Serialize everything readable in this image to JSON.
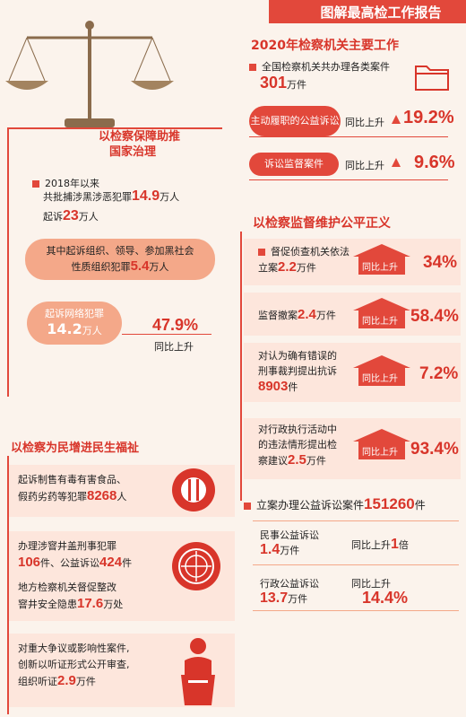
{
  "header": {
    "title": "图解最高检工作报告"
  },
  "section1": {
    "title": "2020年检察机关主要工作",
    "line1": "全国检察机关共办理各类案件",
    "cases_num": "301",
    "cases_unit": "万件",
    "pill1": "主动履职的公益诉讼",
    "pill1_rate_label": "同比上升",
    "pill1_rate": "19.2%",
    "pill2": "诉讼监督案件",
    "pill2_rate_label": "同比上升",
    "pill2_rate": "9.6%"
  },
  "left1": {
    "title1": "以检察保障助推",
    "title2": "国家治理",
    "since": "2018年以来",
    "arrest_pre": "共批捕涉黑涉恶犯罪",
    "arrest_num": "14.9",
    "arrest_unit": "万人",
    "prosecute_pre": "起诉",
    "prosecute_num": "23",
    "prosecute_unit": "万人",
    "org_line1": "其中起诉组织、领导、参加黑社会",
    "org_line2_pre": "性质组织犯罪",
    "org_num": "5.4",
    "org_unit": "万人",
    "net_label": "起诉网络犯罪",
    "net_num": "14.2",
    "net_unit": "万人",
    "net_rate": "47.9%",
    "net_rate_label": "同比上升"
  },
  "section2": {
    "title": "以检察监督维护公平正义",
    "items": [
      {
        "line1": "督促侦查机关依法",
        "line2_pre": "立案",
        "num": "2.2",
        "unit": "万件",
        "rate_label": "同比上升",
        "rate": "34%"
      },
      {
        "line1": "",
        "line2_pre": "监督撤案",
        "num": "2.4",
        "unit": "万件",
        "rate_label": "同比上升",
        "rate": "58.4%"
      },
      {
        "line1": "对认为确有错误的",
        "line2_pre": "刑事裁判提出抗诉",
        "num": "8903",
        "unit": "件",
        "rate_label": "同比上升",
        "rate": "7.2%"
      },
      {
        "line1": "对行政执行活动中",
        "line2_pre": "的违法情形提出检",
        "line3_pre": "察建议",
        "num": "2.5",
        "unit": "万件",
        "rate_label": "同比上升",
        "rate": "93.4%"
      }
    ],
    "public_pre": "立案办理公益诉讼案件",
    "public_num": "151260",
    "public_unit": "件",
    "civil_label": "民事公益诉讼",
    "civil_num": "1.4",
    "civil_unit": "万件",
    "civil_rate_label": "同比上升",
    "civil_rate": "1",
    "civil_rate_unit": "倍",
    "admin_label": "行政公益诉讼",
    "admin_num": "13.7",
    "admin_unit": "万件",
    "admin_rate_label": "同比上升",
    "admin_rate": "14.4%"
  },
  "left2": {
    "title": "以检察为民增进民生福祉",
    "food_line1": "起诉制售有毒有害食品、",
    "food_line2_pre": "假药劣药等犯罪",
    "food_num": "8268",
    "food_unit": "人",
    "well_line1": "办理涉窨井盖刑事犯罪",
    "well_num1": "106",
    "well_mid": "件、公益诉讼",
    "well_num2": "424",
    "well_unit": "件",
    "fix_line1": "地方检察机关督促整改",
    "fix_line2_pre": "窨井安全隐患",
    "fix_num": "17.6",
    "fix_unit": "万处",
    "hear_line1": "对重大争议或影响性案件,",
    "hear_line2": "创新以听证形式公开审查,",
    "hear_line3_pre": "组织听证",
    "hear_num": "2.9",
    "hear_unit": "万件"
  },
  "colors": {
    "accent": "#e2483b",
    "light": "#f4a889",
    "bg": "#fbf3ec"
  }
}
